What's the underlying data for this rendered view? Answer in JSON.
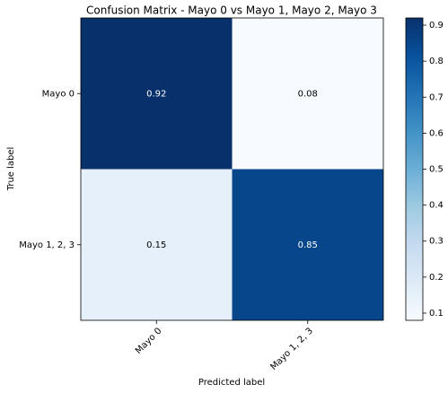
{
  "chart_data": {
    "type": "heatmap",
    "title": "Confusion Matrix - Mayo 0 vs Mayo 1, Mayo 2, Mayo 3",
    "xlabel": "Predicted label",
    "ylabel": "True label",
    "x_categories": [
      "Mayo 0",
      "Mayo 1, 2, 3"
    ],
    "y_categories": [
      "Mayo 0",
      "Mayo 1, 2, 3"
    ],
    "values": [
      [
        0.92,
        0.08
      ],
      [
        0.15,
        0.85
      ]
    ],
    "clim": [
      0.08,
      0.92
    ],
    "colorbar_ticks": [
      0.1,
      0.2,
      0.3,
      0.4,
      0.5,
      0.6,
      0.7,
      0.8,
      0.9
    ],
    "cmap": [
      "#f7fbff",
      "#deebf7",
      "#c6dbef",
      "#9ecae1",
      "#6baed6",
      "#4292c6",
      "#2171b5",
      "#08519c",
      "#08306b"
    ]
  }
}
